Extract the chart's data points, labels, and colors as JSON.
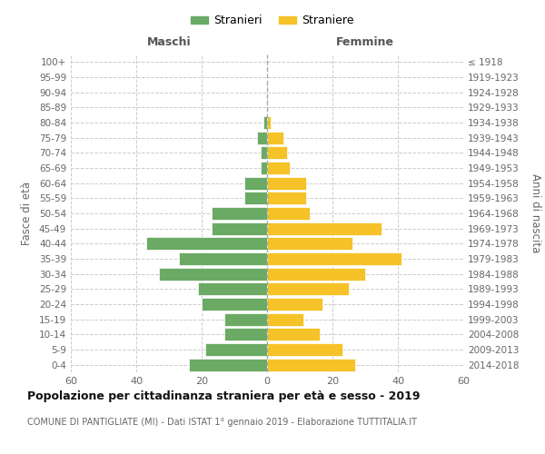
{
  "age_groups": [
    "0-4",
    "5-9",
    "10-14",
    "15-19",
    "20-24",
    "25-29",
    "30-34",
    "35-39",
    "40-44",
    "45-49",
    "50-54",
    "55-59",
    "60-64",
    "65-69",
    "70-74",
    "75-79",
    "80-84",
    "85-89",
    "90-94",
    "95-99",
    "100+"
  ],
  "birth_years": [
    "2014-2018",
    "2009-2013",
    "2004-2008",
    "1999-2003",
    "1994-1998",
    "1989-1993",
    "1984-1988",
    "1979-1983",
    "1974-1978",
    "1969-1973",
    "1964-1968",
    "1959-1963",
    "1954-1958",
    "1949-1953",
    "1944-1948",
    "1939-1943",
    "1934-1938",
    "1929-1933",
    "1924-1928",
    "1919-1923",
    "≤ 1918"
  ],
  "males": [
    24,
    19,
    13,
    13,
    20,
    21,
    33,
    27,
    37,
    17,
    17,
    7,
    7,
    2,
    2,
    3,
    1,
    0,
    0,
    0,
    0
  ],
  "females": [
    27,
    23,
    16,
    11,
    17,
    25,
    30,
    41,
    26,
    35,
    13,
    12,
    12,
    7,
    6,
    5,
    1,
    0,
    0,
    0,
    0
  ],
  "male_color": "#6aaa64",
  "female_color": "#f5c227",
  "background_color": "#ffffff",
  "grid_color": "#cccccc",
  "title": "Popolazione per cittadinanza straniera per età e sesso - 2019",
  "subtitle": "COMUNE DI PANTIGLIATE (MI) - Dati ISTAT 1° gennaio 2019 - Elaborazione TUTTITALIA.IT",
  "xlabel_left": "Maschi",
  "xlabel_right": "Femmine",
  "ylabel_left": "Fasce di età",
  "ylabel_right": "Anni di nascita",
  "legend_male": "Stranieri",
  "legend_female": "Straniere",
  "xlim": 60,
  "xticks": [
    -60,
    -40,
    -20,
    0,
    20,
    40,
    60
  ],
  "xticklabels": [
    "60",
    "40",
    "20",
    "0",
    "20",
    "40",
    "60"
  ]
}
